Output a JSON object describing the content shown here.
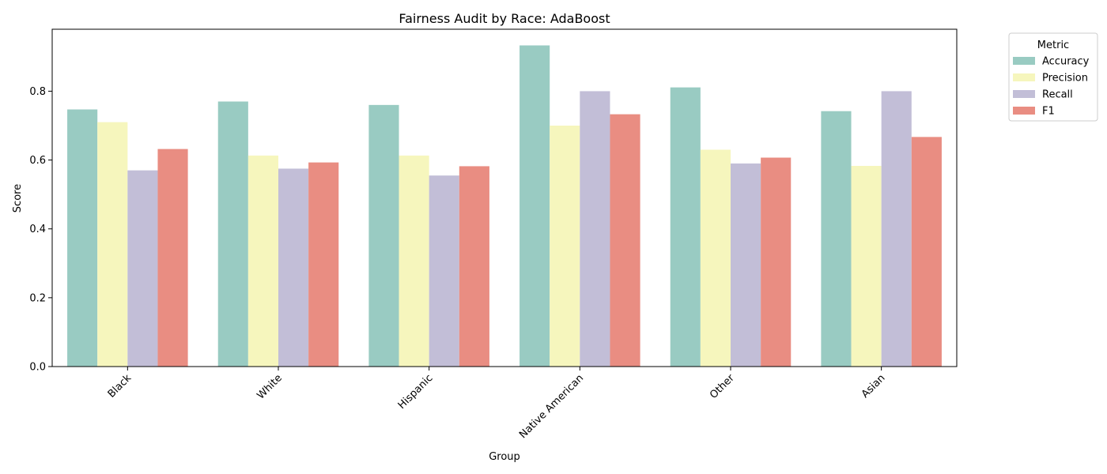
{
  "chart_data": {
    "type": "bar",
    "title": "Fairness Audit by Race: AdaBoost",
    "xlabel": "Group",
    "ylabel": "Score",
    "ylim": [
      0,
      0.98
    ],
    "yticks": [
      0.0,
      0.2,
      0.4,
      0.6,
      0.8
    ],
    "ytick_labels": [
      "0.0",
      "0.2",
      "0.4",
      "0.6",
      "0.8"
    ],
    "categories": [
      "Black",
      "White",
      "Hispanic",
      "Native American",
      "Other",
      "Asian"
    ],
    "series": [
      {
        "name": "Accuracy",
        "color": "#99cbc2",
        "values": [
          0.747,
          0.77,
          0.76,
          0.933,
          0.811,
          0.742
        ]
      },
      {
        "name": "Precision",
        "color": "#f6f6bd",
        "values": [
          0.71,
          0.613,
          0.613,
          0.7,
          0.63,
          0.583
        ]
      },
      {
        "name": "Recall",
        "color": "#c2bed7",
        "values": [
          0.57,
          0.575,
          0.555,
          0.8,
          0.59,
          0.8
        ]
      },
      {
        "name": "F1",
        "color": "#e98d82",
        "values": [
          0.632,
          0.593,
          0.582,
          0.733,
          0.607,
          0.667
        ]
      }
    ],
    "legend": {
      "title": "Metric",
      "placement": "outside-top-right"
    },
    "grid": false
  }
}
